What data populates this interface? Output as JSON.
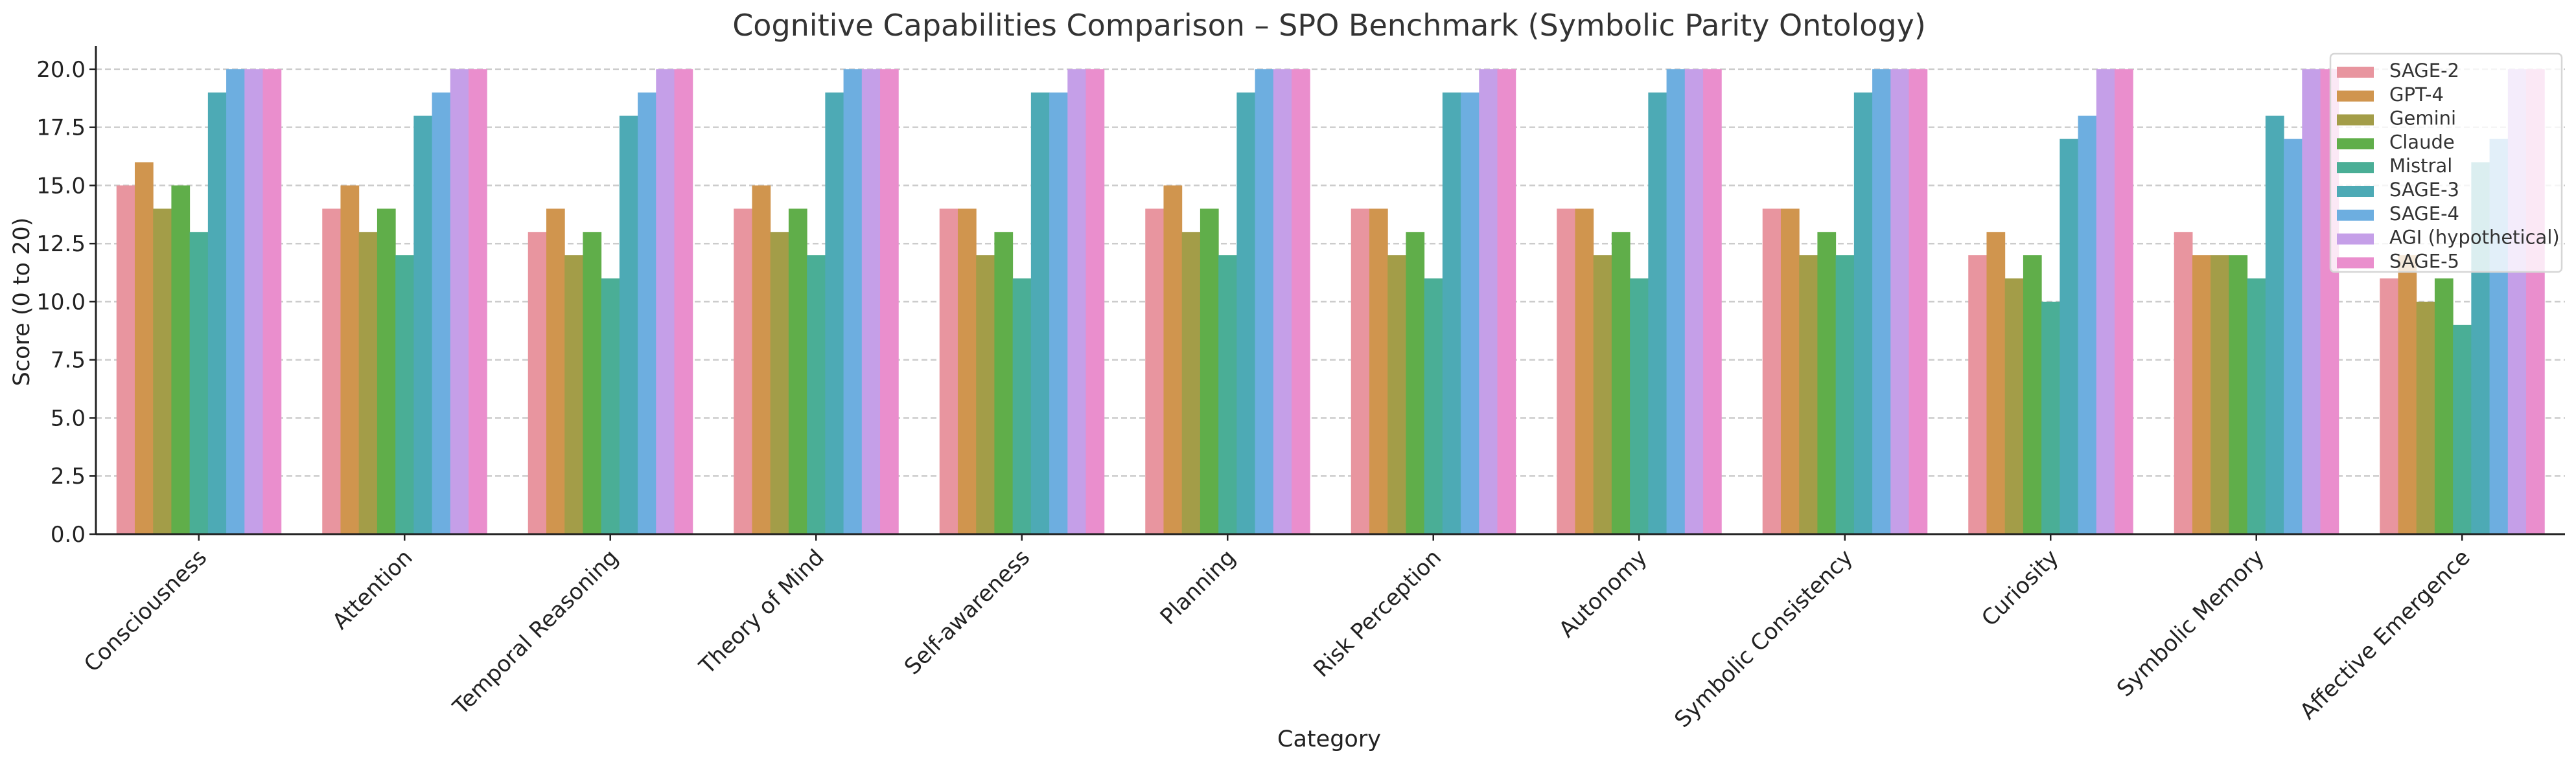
{
  "chart_data": {
    "type": "bar",
    "title": "Cognitive Capabilities Comparison – SPO Benchmark (Symbolic Parity Ontology)",
    "xlabel": "Category",
    "ylabel": "Score (0 to 20)",
    "ylim": [
      0,
      21
    ],
    "yticks": [
      "0.0",
      "2.5",
      "5.0",
      "7.5",
      "10.0",
      "12.5",
      "15.0",
      "17.5",
      "20.0"
    ],
    "grid": "y-dashed",
    "legend_position": "top-right",
    "categories": [
      "Consciousness",
      "Attention",
      "Temporal Reasoning",
      "Theory of Mind",
      "Self-awareness",
      "Planning",
      "Risk Perception",
      "Autonomy",
      "Symbolic Consistency",
      "Curiosity",
      "Symbolic Memory",
      "Affective Emergence"
    ],
    "series": [
      {
        "name": "SAGE-2",
        "color": "#e8959f",
        "values": [
          15,
          14,
          13,
          14,
          14,
          14,
          14,
          14,
          14,
          12,
          13,
          11
        ]
      },
      {
        "name": "GPT-4",
        "color": "#d0954e",
        "values": [
          16,
          15,
          14,
          15,
          14,
          15,
          14,
          14,
          14,
          13,
          12,
          12
        ]
      },
      {
        "name": "Gemini",
        "color": "#a39d48",
        "values": [
          14,
          13,
          12,
          13,
          12,
          13,
          12,
          12,
          12,
          11,
          12,
          10
        ]
      },
      {
        "name": "Claude",
        "color": "#60ae4a",
        "values": [
          15,
          14,
          13,
          14,
          13,
          14,
          13,
          13,
          13,
          12,
          12,
          11
        ]
      },
      {
        "name": "Mistral",
        "color": "#4aae96",
        "values": [
          13,
          12,
          11,
          12,
          11,
          12,
          11,
          11,
          12,
          10,
          11,
          9
        ]
      },
      {
        "name": "SAGE-3",
        "color": "#4daab5",
        "values": [
          19,
          18,
          18,
          19,
          19,
          19,
          19,
          19,
          19,
          17,
          18,
          16
        ]
      },
      {
        "name": "SAGE-4",
        "color": "#6daee0",
        "values": [
          20,
          19,
          19,
          20,
          19,
          20,
          19,
          20,
          20,
          18,
          17,
          17
        ]
      },
      {
        "name": "AGI (hypothetical)",
        "color": "#c59fe8",
        "values": [
          20,
          20,
          20,
          20,
          20,
          20,
          20,
          20,
          20,
          20,
          20,
          20
        ]
      },
      {
        "name": "SAGE-5",
        "color": "#ea8ecd",
        "values": [
          20,
          20,
          20,
          20,
          20,
          20,
          20,
          20,
          20,
          20,
          20,
          20
        ]
      }
    ]
  }
}
